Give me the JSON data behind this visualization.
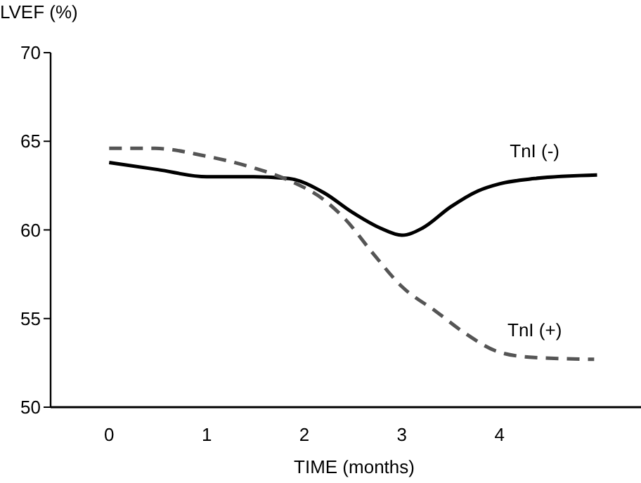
{
  "chart_data": {
    "type": "line",
    "xlabel": "TIME (months)",
    "ylabel": "LVEF (%)",
    "xlim": [
      -0.6,
      5.45
    ],
    "xticks": [
      0,
      1,
      2,
      3,
      4
    ],
    "ylim": [
      50,
      70
    ],
    "yticks": [
      50,
      55,
      60,
      65,
      70
    ],
    "grid": false,
    "series": [
      {
        "name": "TnI (-)",
        "color": "#000000",
        "line_style": "solid",
        "x": [
          0,
          0.5,
          1,
          1.48,
          1.84,
          2.2,
          2.49,
          2.78,
          3,
          3.21,
          3.5,
          3.78,
          4,
          4.36,
          5
        ],
        "values": [
          63.8,
          63.4,
          63.0,
          63.0,
          62.9,
          62.1,
          61.0,
          60.1,
          59.7,
          60.1,
          61.3,
          62.2,
          62.6,
          62.9,
          63.1
        ]
      },
      {
        "name": "TnI (+)",
        "color": "#555555",
        "line_style": "dashed",
        "x": [
          0,
          0.47,
          0.96,
          1.48,
          1.84,
          2.2,
          2.42,
          2.7,
          3,
          3.35,
          3.64,
          4,
          4.36,
          4.97
        ],
        "values": [
          64.6,
          64.6,
          64.2,
          63.5,
          62.8,
          61.7,
          60.6,
          58.7,
          56.8,
          55.4,
          54.2,
          53.1,
          52.8,
          52.7
        ]
      }
    ]
  }
}
